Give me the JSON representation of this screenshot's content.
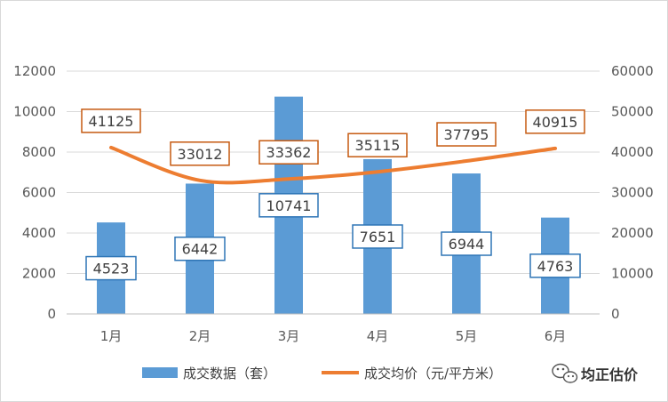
{
  "chart_data": {
    "type": "bar+line",
    "categories": [
      "1月",
      "2月",
      "3月",
      "4月",
      "5月",
      "6月"
    ],
    "series": [
      {
        "name": "成交数据（套）",
        "type": "bar",
        "axis": "left",
        "values": [
          4523,
          6442,
          10741,
          7651,
          6944,
          4763
        ],
        "color": "#5b9bd5",
        "label_border": "#2e75b6"
      },
      {
        "name": "成交均价（元/平方米）",
        "type": "line",
        "axis": "right",
        "values": [
          41125,
          33012,
          33362,
          35115,
          37795,
          40915
        ],
        "color": "#ed7d31",
        "label_border": "#c55a11"
      }
    ],
    "y_left": {
      "ylim": [
        0,
        12000
      ],
      "ticks": [
        "0",
        "2000",
        "4000",
        "6000",
        "8000",
        "10000",
        "12000"
      ]
    },
    "y_right": {
      "ylim": [
        0,
        60000
      ],
      "ticks": [
        "0",
        "10000",
        "20000",
        "30000",
        "40000",
        "50000",
        "60000"
      ]
    },
    "grid": true,
    "legend": "bottom"
  },
  "watermark": {
    "text": "均正估价",
    "icon": "wechat-icon"
  }
}
